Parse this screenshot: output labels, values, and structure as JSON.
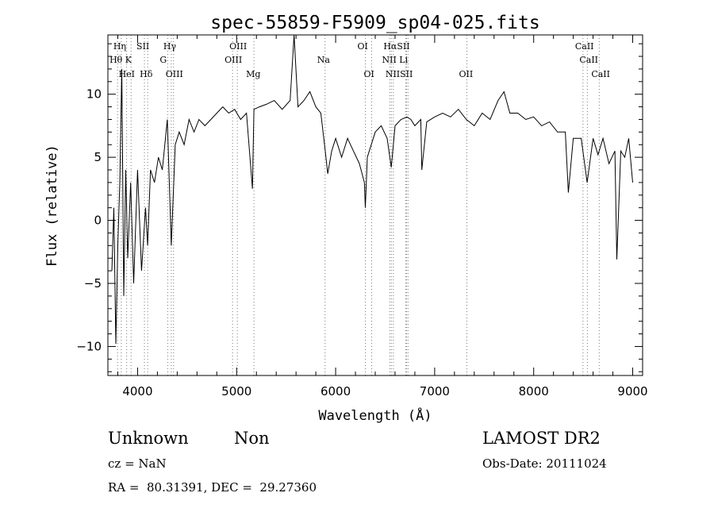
{
  "chart_data": {
    "type": "line",
    "title": "spec-55859-F5909_sp04-025.fits",
    "xlabel": "Wavelength (Å)",
    "ylabel": "Flux (relative)",
    "xlim": [
      3700,
      9100
    ],
    "ylim": [
      -12.3,
      14.7
    ],
    "x_ticks": [
      4000,
      5000,
      6000,
      7000,
      8000,
      9000
    ],
    "y_ticks": [
      -10,
      -5,
      0,
      5,
      10
    ],
    "grid": false,
    "series": [
      {
        "x": [
          3740,
          3760,
          3780,
          3800,
          3820,
          3840,
          3860,
          3880,
          3900,
          3930,
          3960,
          4000,
          4040,
          4080,
          4101,
          4130,
          4170,
          4210,
          4250,
          4300,
          4340,
          4380,
          4420,
          4470,
          4520,
          4570,
          4620,
          4680,
          4740,
          4800,
          4860,
          4920,
          4980,
          5040,
          5100,
          5160,
          5175,
          5230,
          5300,
          5380,
          5460,
          5540,
          5580,
          5620,
          5680,
          5740,
          5800,
          5850,
          5895,
          5920,
          5960,
          6000,
          6060,
          6120,
          6180,
          6240,
          6290,
          6300,
          6320,
          6360,
          6400,
          6460,
          6520,
          6562,
          6600,
          6660,
          6720,
          6760,
          6800,
          6860,
          6870,
          6920,
          7000,
          7080,
          7160,
          7240,
          7320,
          7400,
          7480,
          7560,
          7640,
          7700,
          7760,
          7840,
          7920,
          8000,
          8080,
          8160,
          8240,
          8320,
          8350,
          8400,
          8480,
          8540,
          8600,
          8650,
          8700,
          8760,
          8820,
          8840,
          8880,
          8920,
          8960,
          9000
        ],
        "y": [
          -4,
          1,
          -9.8,
          -2,
          3,
          12,
          -6,
          4,
          -3,
          3,
          -5,
          4,
          -4,
          1,
          -2,
          4,
          3,
          5,
          4,
          8,
          -2,
          6,
          7,
          6,
          8,
          7,
          8,
          7.5,
          8,
          8.5,
          9,
          8.5,
          8.8,
          8,
          8.5,
          2.5,
          8.8,
          9,
          9.2,
          9.5,
          8.8,
          9.5,
          14.7,
          9,
          9.5,
          10.2,
          9,
          8.5,
          5.5,
          3.7,
          5.5,
          6.5,
          5,
          6.5,
          5.5,
          4.5,
          3,
          1,
          5,
          6,
          7,
          7.5,
          6.5,
          4.2,
          7.5,
          8,
          8.2,
          8,
          7.5,
          8,
          4,
          7.8,
          8.2,
          8.5,
          8.2,
          8.8,
          8,
          7.5,
          8.5,
          8,
          9.5,
          10.2,
          8.5,
          8.5,
          8,
          8.2,
          7.5,
          7.8,
          7,
          7,
          2.2,
          6.5,
          6.5,
          3,
          6.5,
          5.2,
          6.5,
          4.5,
          5.5,
          -3.1,
          5.5,
          5,
          6.5,
          3
        ]
      }
    ],
    "line_labels": [
      {
        "text": "Hη",
        "row": 1,
        "x": 3835
      },
      {
        "text": "SII",
        "row": 1,
        "x": 4069
      },
      {
        "text": "Hγ",
        "row": 1,
        "x": 4340
      },
      {
        "text": "OIII",
        "row": 1,
        "x": 5007
      },
      {
        "text": "OI",
        "row": 1,
        "x": 6300
      },
      {
        "text": "HαSII",
        "row": 1,
        "x": 6563
      },
      {
        "text": "CaII",
        "row": 1,
        "x": 8498
      },
      {
        "text": "Hθ K",
        "row": 2,
        "x": 3797
      },
      {
        "text": "G",
        "row": 2,
        "x": 4304
      },
      {
        "text": "OIII",
        "row": 2,
        "x": 4959
      },
      {
        "text": "Na",
        "row": 2,
        "x": 5893
      },
      {
        "text": "NII Li",
        "row": 2,
        "x": 6548
      },
      {
        "text": "CaII",
        "row": 2,
        "x": 8542
      },
      {
        "text": "HeI",
        "row": 3,
        "x": 3889
      },
      {
        "text": "Hδ",
        "row": 3,
        "x": 4102
      },
      {
        "text": "OIII",
        "row": 3,
        "x": 4363
      },
      {
        "text": "Mg",
        "row": 3,
        "x": 5175
      },
      {
        "text": "OI",
        "row": 3,
        "x": 6364
      },
      {
        "text": "NIISII",
        "row": 3,
        "x": 6583
      },
      {
        "text": "OII",
        "row": 3,
        "x": 7325
      },
      {
        "text": "CaII",
        "row": 3,
        "x": 8662
      }
    ],
    "line_markers": [
      3797,
      3835,
      3889,
      3934,
      4069,
      4102,
      4304,
      4340,
      4363,
      4959,
      5007,
      5175,
      5893,
      6300,
      6364,
      6548,
      6563,
      6583,
      6707,
      6716,
      6731,
      7325,
      8498,
      8542,
      8662
    ]
  },
  "info": {
    "class": "Unknown",
    "subclass": "Non",
    "survey": "LAMOST DR2",
    "cz": "cz = NaN",
    "obs_date": "Obs-Date: 20111024",
    "coords": "RA =  80.31391, DEC =  29.27360"
  }
}
